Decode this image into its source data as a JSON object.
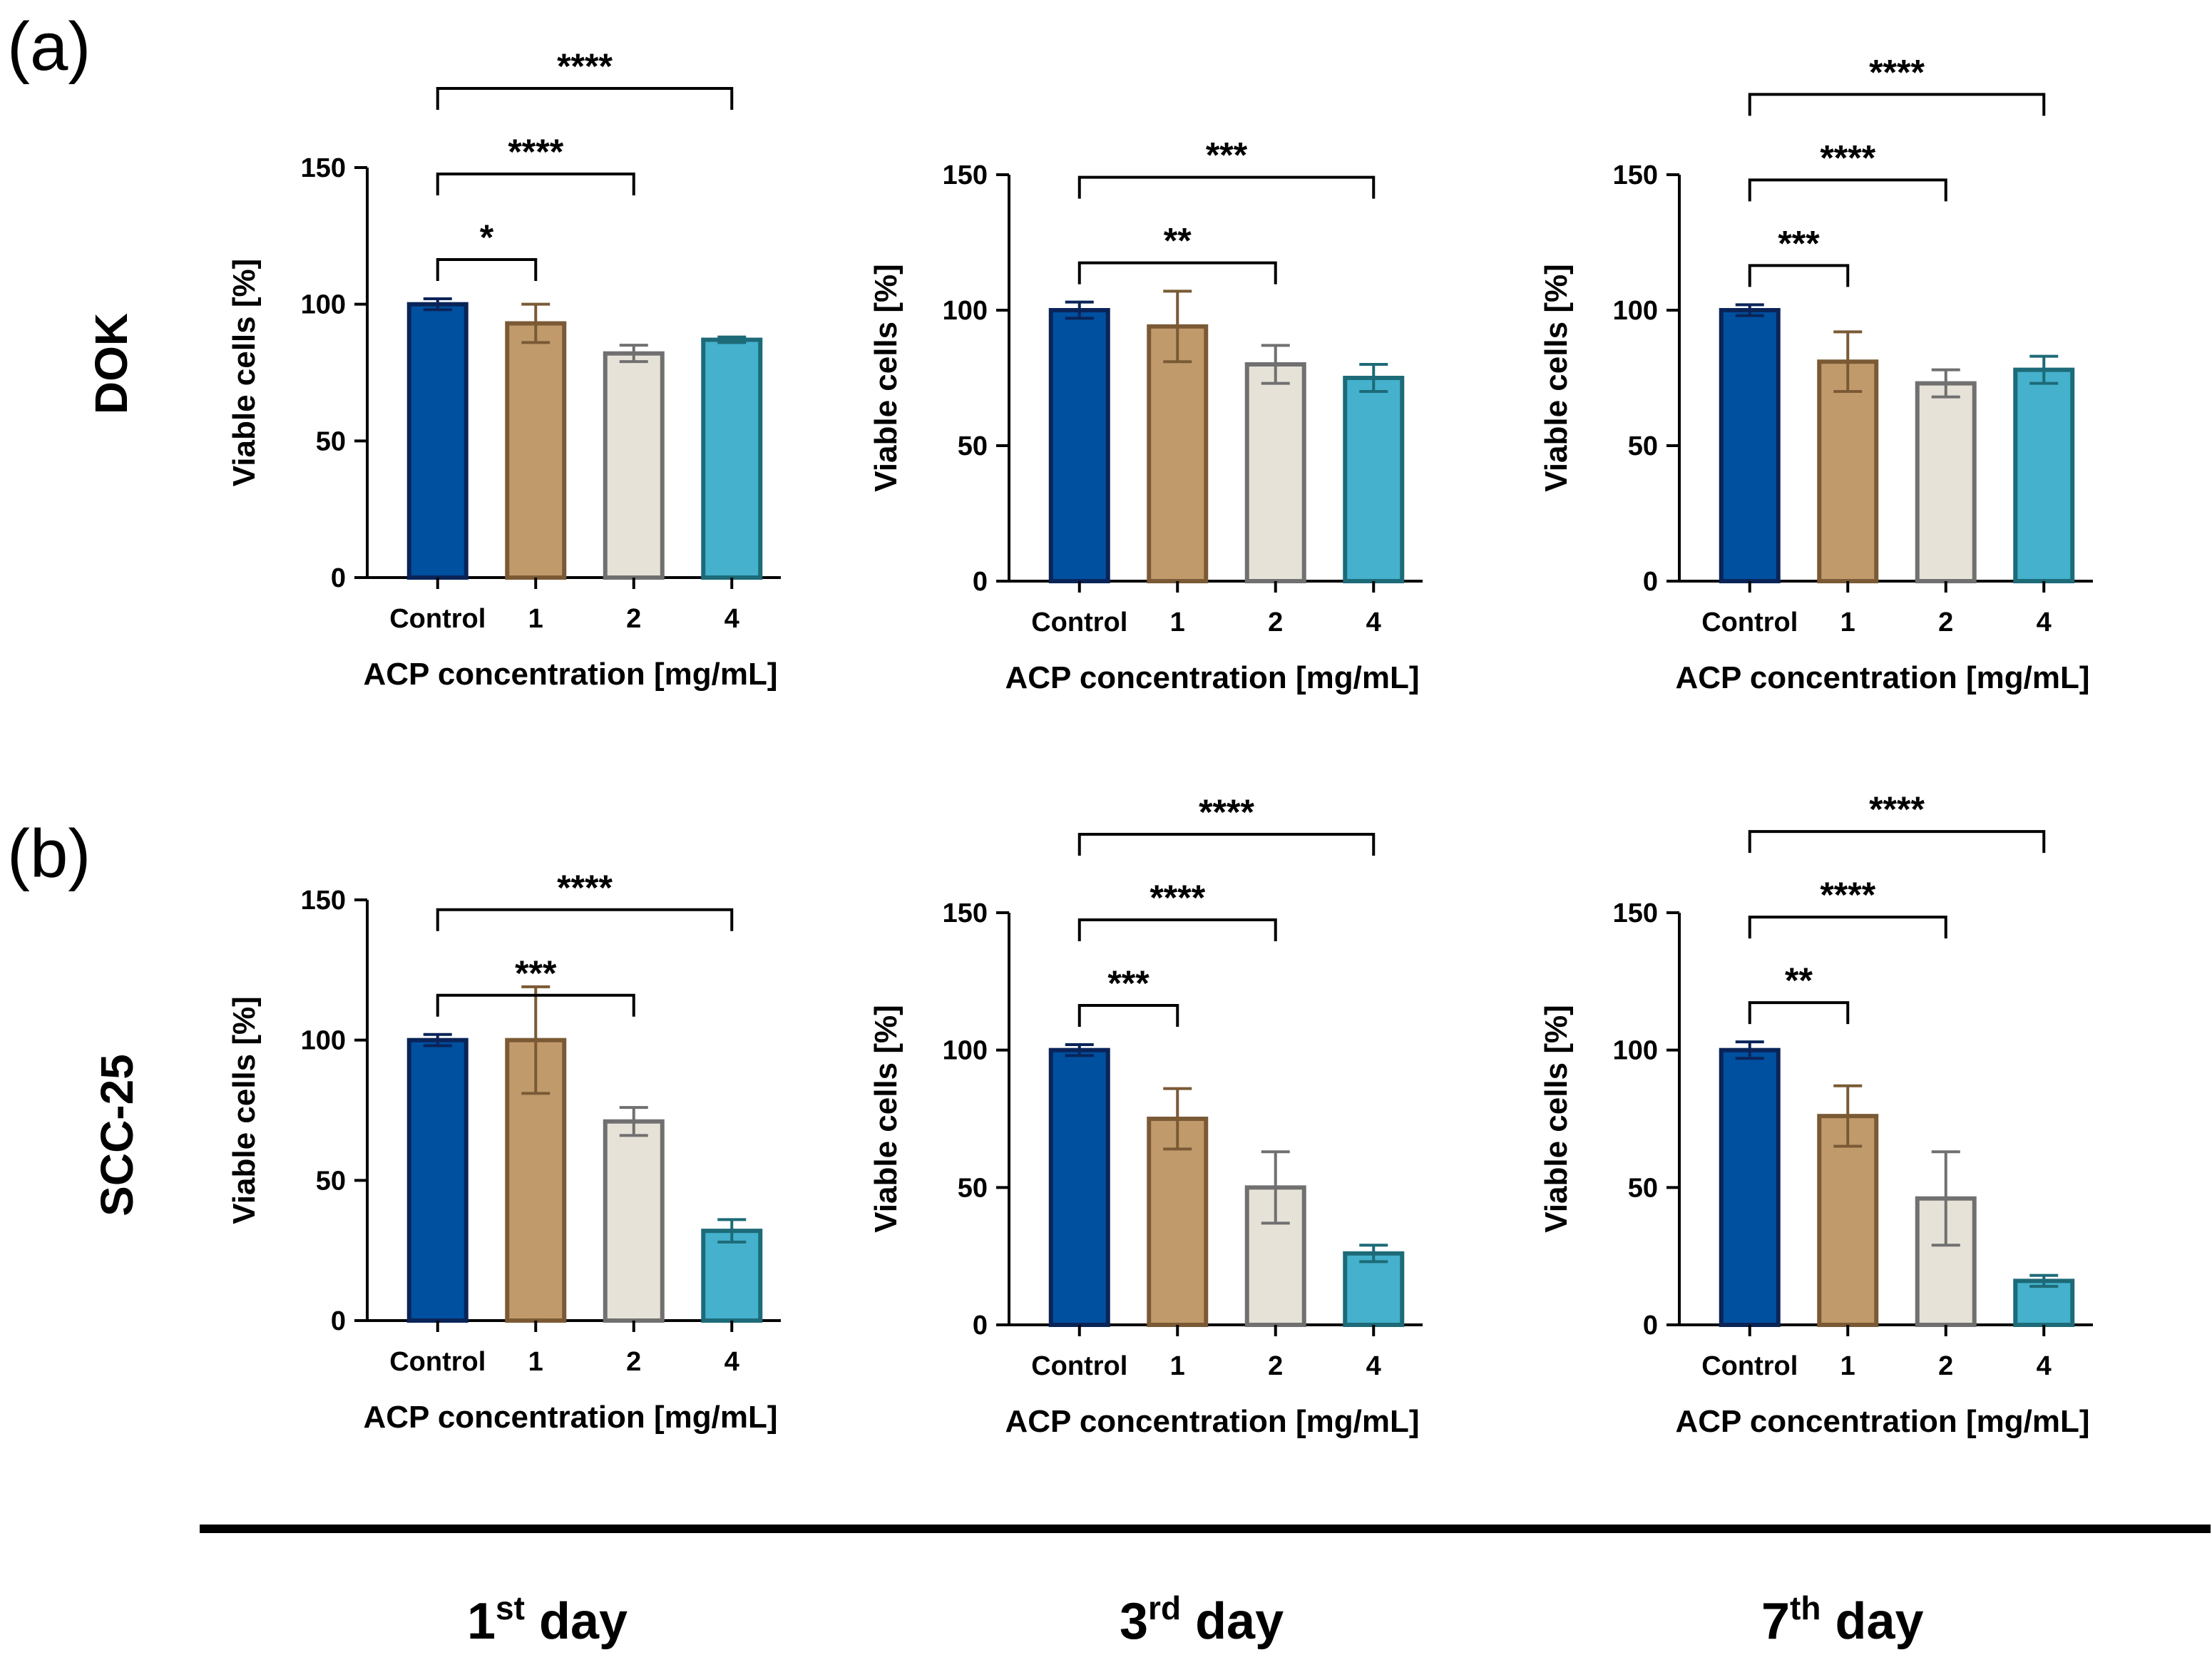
{
  "panels": {
    "a": "(a)",
    "b": "(b)"
  },
  "rows": {
    "top": "DOK",
    "bottom": "SCC-25"
  },
  "days": [
    {
      "num": "1",
      "sup": "st",
      "word": "day"
    },
    {
      "num": "3",
      "sup": "rd",
      "word": "day"
    },
    {
      "num": "7",
      "sup": "th",
      "word": "day"
    }
  ],
  "colors": {
    "control_fill": "#0050A0",
    "control_edge": "#0A2458",
    "c1_fill": "#C19A6B",
    "c1_edge": "#7A5A35",
    "c2_fill": "#E6E2D8",
    "c2_edge": "#707070",
    "c4_fill": "#45B1CC",
    "c4_edge": "#1D6A78"
  },
  "chart_data": [
    {
      "id": "dok-day1",
      "type": "bar",
      "title": "",
      "xlabel": "ACP concentration [mg/mL]",
      "ylabel": "Viable cells [%]",
      "ylim": [
        0,
        150
      ],
      "yticks": [
        0,
        50,
        100,
        150
      ],
      "categories": [
        "Control",
        "1",
        "2",
        "4"
      ],
      "values": [
        100,
        93,
        82,
        87
      ],
      "errors": [
        2,
        7,
        3,
        1
      ],
      "significance": [
        {
          "from": 0,
          "to": 1,
          "label": "*"
        },
        {
          "from": 0,
          "to": 2,
          "label": "****"
        },
        {
          "from": 0,
          "to": 3,
          "label": "****"
        }
      ]
    },
    {
      "id": "dok-day3",
      "type": "bar",
      "title": "",
      "xlabel": "ACP concentration [mg/mL]",
      "ylabel": "Viable cells [%]",
      "ylim": [
        0,
        150
      ],
      "yticks": [
        0,
        50,
        100,
        150
      ],
      "categories": [
        "Control",
        "1",
        "2",
        "4"
      ],
      "values": [
        100,
        94,
        80,
        75
      ],
      "errors": [
        3,
        13,
        7,
        5
      ],
      "significance": [
        {
          "from": 0,
          "to": 2,
          "label": "**"
        },
        {
          "from": 0,
          "to": 3,
          "label": "***"
        }
      ]
    },
    {
      "id": "dok-day7",
      "type": "bar",
      "title": "",
      "xlabel": "ACP concentration [mg/mL]",
      "ylabel": "Viable cells [%]",
      "ylim": [
        0,
        150
      ],
      "yticks": [
        0,
        50,
        100,
        150
      ],
      "categories": [
        "Control",
        "1",
        "2",
        "4"
      ],
      "values": [
        100,
        81,
        73,
        78
      ],
      "errors": [
        2,
        11,
        5,
        5
      ],
      "significance": [
        {
          "from": 0,
          "to": 1,
          "label": "***"
        },
        {
          "from": 0,
          "to": 2,
          "label": "****"
        },
        {
          "from": 0,
          "to": 3,
          "label": "****"
        }
      ]
    },
    {
      "id": "scc-day1",
      "type": "bar",
      "title": "",
      "xlabel": "ACP concentration [mg/mL]",
      "ylabel": "Viable cells [%]",
      "ylim": [
        0,
        150
      ],
      "yticks": [
        0,
        50,
        100,
        150
      ],
      "categories": [
        "Control",
        "1",
        "2",
        "4"
      ],
      "values": [
        100,
        100,
        71,
        32
      ],
      "errors": [
        2,
        19,
        5,
        4
      ],
      "significance": [
        {
          "from": 0,
          "to": 2,
          "label": "***"
        },
        {
          "from": 0,
          "to": 3,
          "label": "****"
        }
      ]
    },
    {
      "id": "scc-day3",
      "type": "bar",
      "title": "",
      "xlabel": "ACP concentration [mg/mL]",
      "ylabel": "Viable cells [%]",
      "ylim": [
        0,
        150
      ],
      "yticks": [
        0,
        50,
        100,
        150
      ],
      "categories": [
        "Control",
        "1",
        "2",
        "4"
      ],
      "values": [
        100,
        75,
        50,
        26
      ],
      "errors": [
        2,
        11,
        13,
        3
      ],
      "significance": [
        {
          "from": 0,
          "to": 1,
          "label": "***"
        },
        {
          "from": 0,
          "to": 2,
          "label": "****"
        },
        {
          "from": 0,
          "to": 3,
          "label": "****"
        }
      ]
    },
    {
      "id": "scc-day7",
      "type": "bar",
      "title": "",
      "xlabel": "ACP concentration [mg/mL]",
      "ylabel": "Viable cells [%]",
      "ylim": [
        0,
        150
      ],
      "yticks": [
        0,
        50,
        100,
        150
      ],
      "categories": [
        "Control",
        "1",
        "2",
        "4"
      ],
      "values": [
        100,
        76,
        46,
        16
      ],
      "errors": [
        3,
        11,
        17,
        2
      ],
      "significance": [
        {
          "from": 0,
          "to": 1,
          "label": "**"
        },
        {
          "from": 0,
          "to": 2,
          "label": "****"
        },
        {
          "from": 0,
          "to": 3,
          "label": "****"
        }
      ]
    }
  ]
}
